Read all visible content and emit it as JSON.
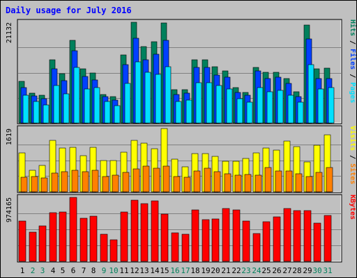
{
  "chart_data": {
    "type": "bar",
    "title": "Daily usage for July 2016",
    "categories": [
      "1",
      "2",
      "3",
      "4",
      "5",
      "6",
      "7",
      "8",
      "9",
      "10",
      "11",
      "12",
      "13",
      "14",
      "15",
      "16",
      "17",
      "18",
      "19",
      "20",
      "21",
      "22",
      "23",
      "24",
      "25",
      "26",
      "27",
      "28",
      "29",
      "30",
      "31"
    ],
    "weekend_days": [
      "2",
      "3",
      "9",
      "10",
      "16",
      "17",
      "23",
      "24",
      "30",
      "31"
    ],
    "colors": {
      "background": "#c0c0c0",
      "title": "#0000ff",
      "hits": "#00805c",
      "files": "#0040ff",
      "pages": "#00e0ff",
      "visits": "#ffff00",
      "sites": "#ff8000",
      "kbytes": "#ff0000",
      "weekday_label": "#000000",
      "weekend_label": "#00805c"
    },
    "panels": [
      {
        "id": "hits-files-pages",
        "max_label": "21132",
        "ylim": [
          0,
          21132
        ],
        "legend": [
          {
            "label": "Pages",
            "color": "#00e0ff"
          },
          {
            "label": "Files",
            "color": "#0040ff"
          },
          {
            "label": "Hits",
            "color": "#00805c"
          }
        ],
        "separator": "/",
        "series": [
          {
            "name": "Hits",
            "color": "#00805c",
            "values": [
              8800,
              6300,
              5900,
              13300,
              10400,
              17300,
              11400,
              10500,
              6000,
              5600,
              14300,
              21132,
              16000,
              17000,
              21000,
              7000,
              7000,
              13300,
              13300,
              11800,
              11000,
              7400,
              6400,
              11600,
              10600,
              10700,
              9300,
              6500,
              20500,
              11300,
              11500
            ]
          },
          {
            "name": "Files",
            "color": "#0040ff",
            "values": [
              7400,
              5700,
              5100,
              11400,
              8900,
              15200,
              9700,
              9000,
              5500,
              4800,
              12200,
              17800,
              13300,
              14400,
              17300,
              6000,
              6300,
              11700,
              11700,
              10100,
              9600,
              6400,
              5800,
              10900,
              9400,
              9600,
              8300,
              5600,
              17700,
              9400,
              9400
            ]
          },
          {
            "name": "Pages",
            "color": "#00e0ff",
            "values": [
              5900,
              4500,
              3800,
              7900,
              6100,
              11700,
              7100,
              7400,
              4500,
              3600,
              8300,
              12800,
              10600,
              10200,
              11800,
              4500,
              4800,
              8400,
              8500,
              7900,
              7200,
              5100,
              4400,
              7400,
              6500,
              6800,
              5900,
              4300,
              12300,
              7100,
              7400
            ]
          }
        ]
      },
      {
        "id": "visits-sites",
        "max_label": "1619",
        "ylim": [
          0,
          1619
        ],
        "legend": [
          {
            "label": "Sites",
            "color": "#ff8000"
          },
          {
            "label": "Visits",
            "color": "#ffff00"
          }
        ],
        "separator": "/",
        "series": [
          {
            "name": "Visits",
            "color": "#ffff00",
            "values": [
              1000,
              560,
              680,
              1320,
              1120,
              1140,
              930,
              1140,
              800,
              800,
              1020,
              1310,
              1240,
              1100,
              1619,
              840,
              640,
              970,
              980,
              900,
              780,
              780,
              850,
              1000,
              1120,
              1070,
              1300,
              1160,
              760,
              1190,
              1450
            ]
          },
          {
            "name": "Sites",
            "color": "#ff8000",
            "values": [
              370,
              400,
              350,
              480,
              520,
              560,
              520,
              550,
              400,
              420,
              500,
              580,
              660,
              600,
              650,
              400,
              380,
              540,
              600,
              520,
              470,
              430,
              450,
              420,
              620,
              530,
              530,
              460,
              400,
              500,
              620
            ]
          }
        ]
      },
      {
        "id": "kbytes",
        "max_label": "974165",
        "ylim": [
          0,
          974165
        ],
        "legend": [
          {
            "label": "KBytes",
            "color": "#ff0000"
          }
        ],
        "separator": "",
        "series": [
          {
            "name": "KBytes",
            "color": "#ff0000",
            "values": [
              610000,
              450000,
              540000,
              740000,
              750000,
              974165,
              660000,
              690000,
              410000,
              330000,
              750000,
              930000,
              880000,
              920000,
              720000,
              435000,
              415000,
              780000,
              635000,
              650000,
              800000,
              780000,
              615000,
              420000,
              600000,
              675000,
              800000,
              770000,
              770000,
              580000,
              700000
            ]
          }
        ]
      }
    ]
  }
}
